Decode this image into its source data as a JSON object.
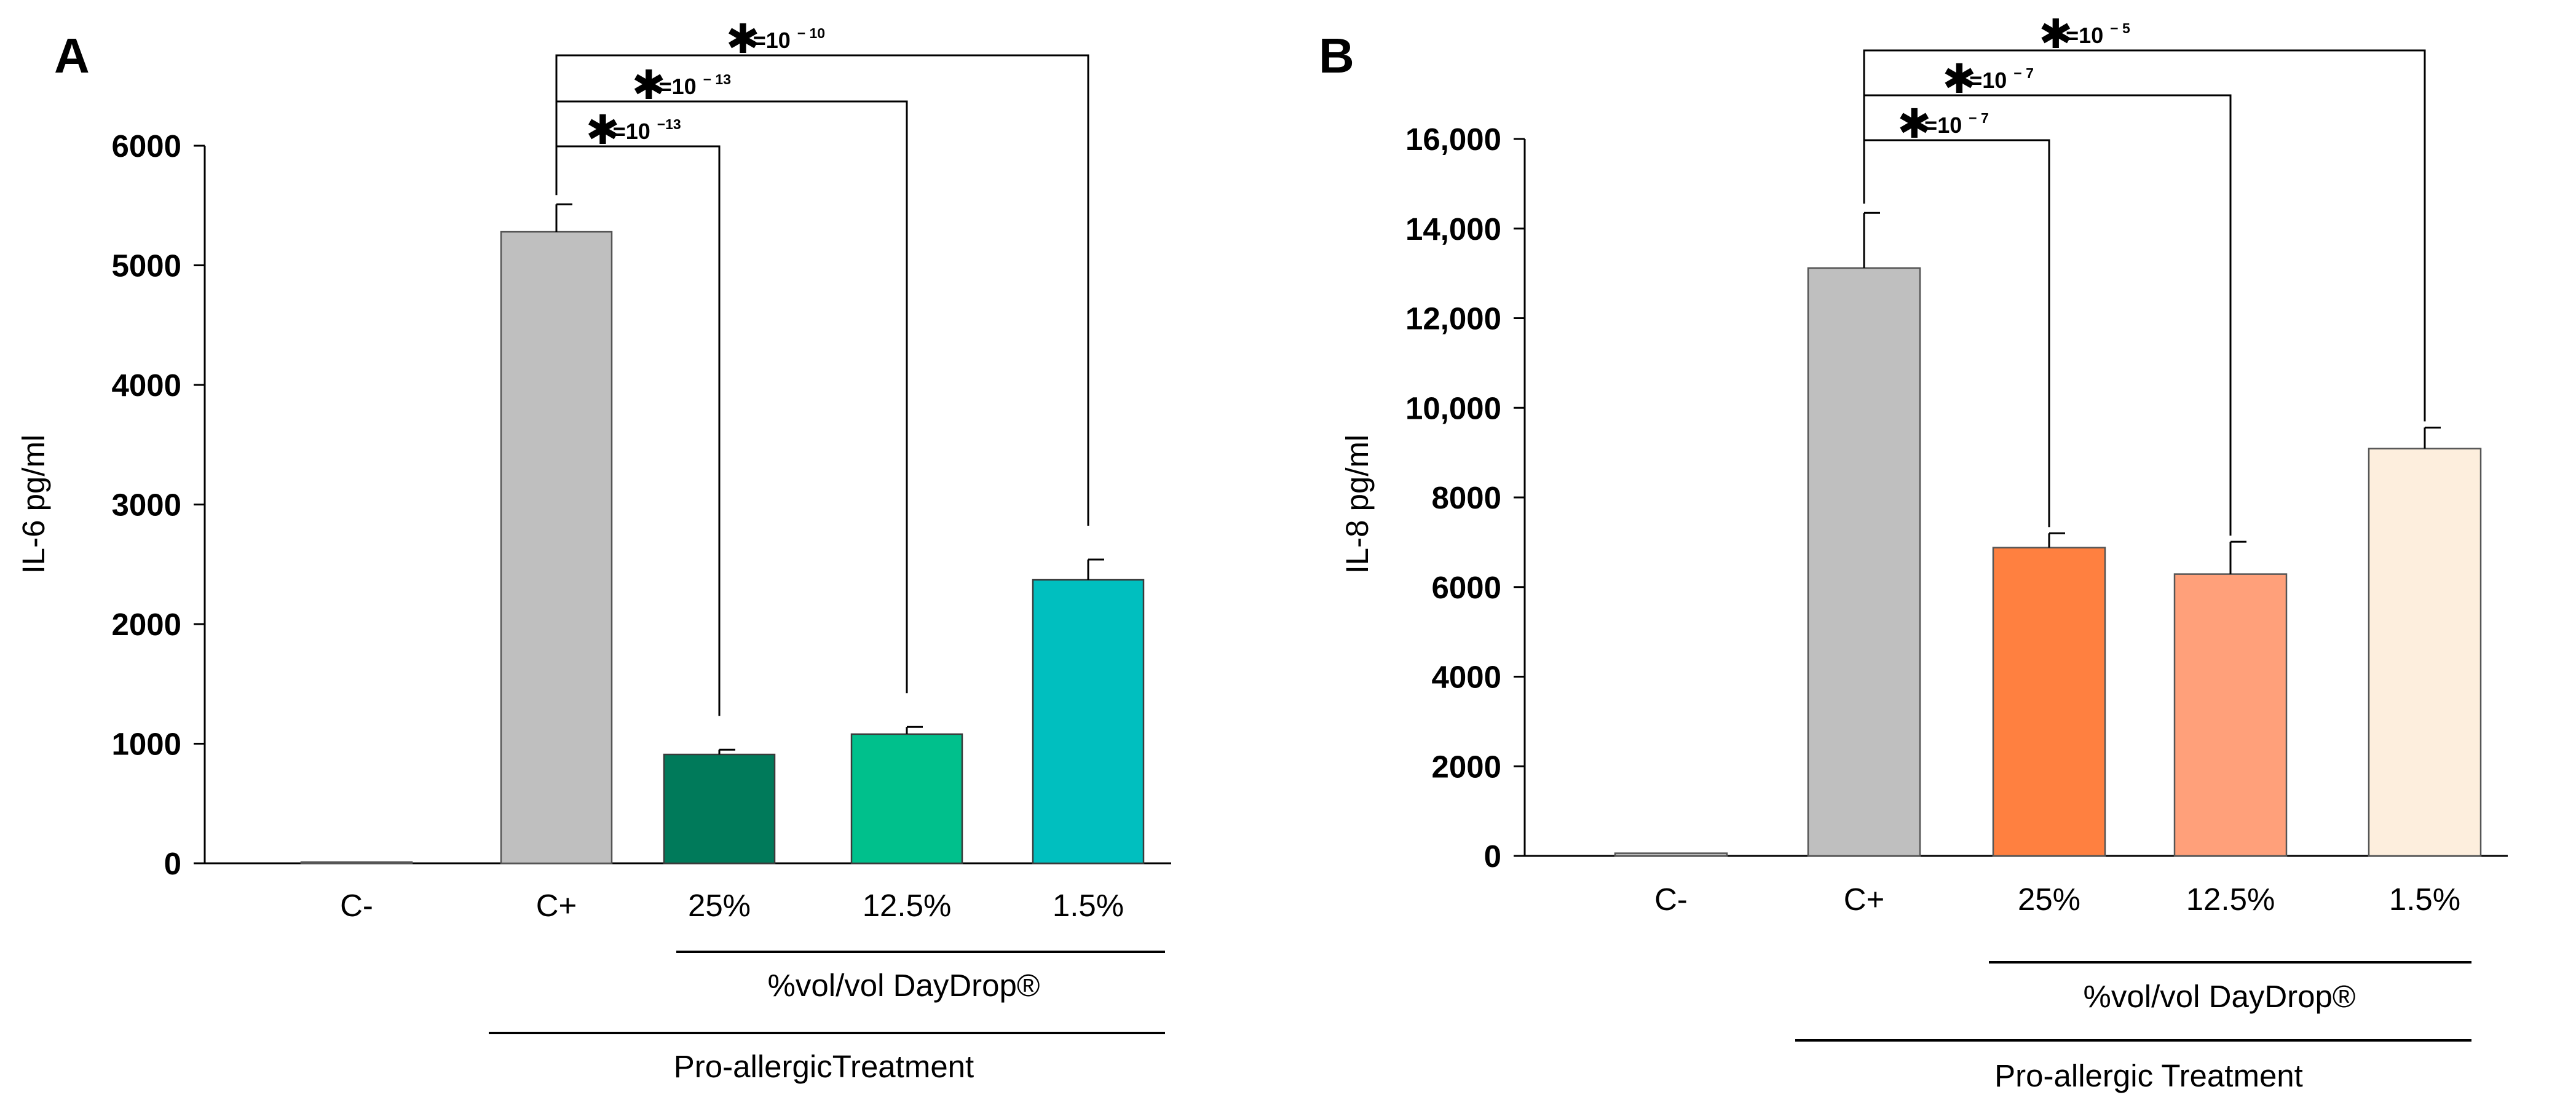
{
  "chart_data": [
    {
      "type": "bar",
      "panel_label": "A",
      "ylabel": "IL-6 pg/ml",
      "ylim": [
        0,
        6000
      ],
      "yticks": [
        "0",
        "1000",
        "2000",
        "3000",
        "4000",
        "5000",
        "6000"
      ],
      "categories": [
        "C-",
        "C+",
        "25%",
        "12.5%",
        "1.5%"
      ],
      "values": [
        0,
        5280,
        910,
        1080,
        2370
      ],
      "errors": [
        0,
        230,
        40,
        60,
        170
      ],
      "colors": [
        "#bfbfbf",
        "#bfbfbf",
        "#007a5a",
        "#00c08c",
        "#00bfbf"
      ],
      "group_labels": {
        "dose": "%vol/vol  DayDrop®",
        "treatment": "Pro-allergicTreatment"
      },
      "significance": [
        {
          "from": "C+",
          "to": "25%",
          "star": "✱",
          "eq": "=10",
          "exp": "−13"
        },
        {
          "from": "C+",
          "to": "12.5%",
          "star": "✱",
          "eq": "=10",
          "exp": "− 13"
        },
        {
          "from": "C+",
          "to": "1.5%",
          "star": "✱",
          "eq": "=10",
          "exp": "− 10"
        }
      ]
    },
    {
      "type": "bar",
      "panel_label": "B",
      "ylabel": "IL-8 pg/ml",
      "ylim": [
        0,
        16000
      ],
      "yticks": [
        "0",
        "2000",
        "4000",
        "6000",
        "8000",
        "10,000",
        "12,000",
        "14,000",
        "16,000"
      ],
      "categories": [
        "C-",
        "C+",
        "25%",
        "12.5%",
        "1.5%"
      ],
      "values": [
        60,
        13120,
        6880,
        6290,
        9090
      ],
      "errors": [
        0,
        1230,
        320,
        720,
        470
      ],
      "colors": [
        "#bfbfbf",
        "#bfbfbf",
        "#ff8040",
        "#ffa07a",
        "#fdeedd"
      ],
      "group_labels": {
        "dose": "%vol/vol  DayDrop®",
        "treatment": "Pro-allergic Treatment"
      },
      "significance": [
        {
          "from": "C+",
          "to": "25%",
          "star": "✱",
          "eq": "=10",
          "exp": "− 7"
        },
        {
          "from": "C+",
          "to": "12.5%",
          "star": "✱",
          "eq": "=10",
          "exp": "− 7"
        },
        {
          "from": "C+",
          "to": "1.5%",
          "star": "✱",
          "eq": "=10",
          "exp": "− 5"
        }
      ]
    }
  ]
}
